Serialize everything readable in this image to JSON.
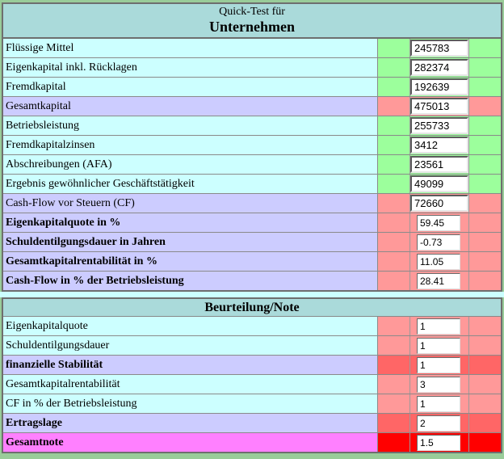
{
  "colors": {
    "page_background": "#99cc99",
    "header_teal": "#aadada",
    "label_cyan": "#ccffff",
    "label_lavender": "#ccccff",
    "label_magenta": "#ff80ff",
    "status_green": "#9cff9c",
    "status_salmon": "#ff9999",
    "status_deep_red": "#ff6666",
    "status_red": "#ff0000",
    "gap_cyan": "#ccffff"
  },
  "quick_test": {
    "header": {
      "line1": "Quick-Test für",
      "line2": "Unternehmen"
    },
    "rows": [
      {
        "label": "Flüssige Mittel",
        "value": "245783",
        "editable": true,
        "bold": false,
        "label_bg": "#ccffff",
        "cell_bg": "#9cff9c"
      },
      {
        "label": "Eigenkapital inkl. Rücklagen",
        "value": "282374",
        "editable": true,
        "bold": false,
        "label_bg": "#ccffff",
        "cell_bg": "#9cff9c"
      },
      {
        "label": "Fremdkapital",
        "value": "192639",
        "editable": true,
        "bold": false,
        "label_bg": "#ccffff",
        "cell_bg": "#9cff9c"
      },
      {
        "label": "Gesamtkapital",
        "value": "475013",
        "editable": true,
        "bold": false,
        "label_bg": "#ccccff",
        "cell_bg": "#ff9999"
      },
      {
        "label": "Betriebsleistung",
        "value": "255733",
        "editable": true,
        "bold": false,
        "label_bg": "#ccffff",
        "cell_bg": "#9cff9c"
      },
      {
        "label": "Fremdkapitalzinsen",
        "value": "3412",
        "editable": true,
        "bold": false,
        "label_bg": "#ccffff",
        "cell_bg": "#9cff9c"
      },
      {
        "label": "Abschreibungen (AFA)",
        "value": "23561",
        "editable": true,
        "bold": false,
        "label_bg": "#ccffff",
        "cell_bg": "#9cff9c"
      },
      {
        "label": "Ergebnis gewöhnlicher Geschäftstätigkeit",
        "value": "49099",
        "editable": true,
        "bold": false,
        "label_bg": "#ccffff",
        "cell_bg": "#9cff9c"
      },
      {
        "label": "Cash-Flow vor Steuern (CF)",
        "value": "72660",
        "editable": true,
        "bold": false,
        "label_bg": "#ccccff",
        "cell_bg": "#ff9999"
      },
      {
        "label": "Eigenkapitalquote in %",
        "value": "59.45",
        "editable": false,
        "bold": true,
        "label_bg": "#ccccff",
        "cell_bg": "#ff9999"
      },
      {
        "label": "Schuldentilgungsdauer in Jahren",
        "value": "-0.73",
        "editable": false,
        "bold": true,
        "label_bg": "#ccccff",
        "cell_bg": "#ff9999"
      },
      {
        "label": "Gesamtkapitalrentabilität in %",
        "value": "11.05",
        "editable": false,
        "bold": true,
        "label_bg": "#ccccff",
        "cell_bg": "#ff9999"
      },
      {
        "label": "Cash-Flow in % der Betriebsleistung",
        "value": "28.41",
        "editable": false,
        "bold": true,
        "label_bg": "#ccccff",
        "cell_bg": "#ff9999"
      }
    ]
  },
  "note": {
    "header": {
      "title": "Beurteilung/Note"
    },
    "rows": [
      {
        "label": "Eigenkapitalquote",
        "value": "1",
        "editable": false,
        "bold": false,
        "label_bg": "#ccffff",
        "cell_bg": "#ff9999"
      },
      {
        "label": "Schuldentilgungsdauer",
        "value": "1",
        "editable": false,
        "bold": false,
        "label_bg": "#ccffff",
        "cell_bg": "#ff9999"
      },
      {
        "label": "finanzielle Stabilität",
        "value": "1",
        "editable": false,
        "bold": true,
        "label_bg": "#ccccff",
        "cell_bg": "#ff6666"
      },
      {
        "label": "Gesamtkapitalrentabilität",
        "value": "3",
        "editable": false,
        "bold": false,
        "label_bg": "#ccffff",
        "cell_bg": "#ff9999"
      },
      {
        "label": "CF in % der Betriebsleistung",
        "value": "1",
        "editable": false,
        "bold": false,
        "label_bg": "#ccffff",
        "cell_bg": "#ff9999"
      },
      {
        "label": "Ertragslage",
        "value": "2",
        "editable": false,
        "bold": true,
        "label_bg": "#ccccff",
        "cell_bg": "#ff6666"
      },
      {
        "label": "Gesamtnote",
        "value": "1.5",
        "editable": false,
        "bold": true,
        "label_bg": "#ff80ff",
        "cell_bg": "#ff0000"
      }
    ]
  }
}
